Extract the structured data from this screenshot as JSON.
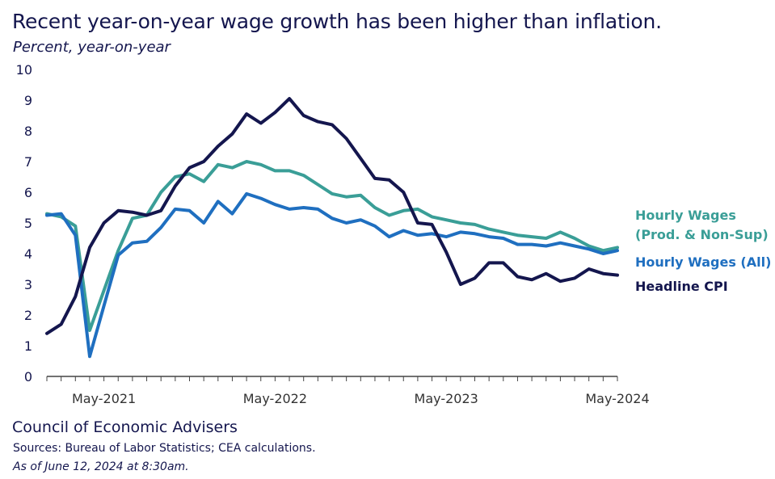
{
  "title": "Recent year-on-year wage growth has been higher than inflation.",
  "subtitle": "Percent, year-on-year",
  "footer": {
    "organization": "Council of Economic Advisers",
    "sources": "Sources: Bureau of Labor Statistics; CEA calculations.",
    "as_of": "As of June 12, 2024 at 8:30am."
  },
  "chart_data": {
    "type": "line",
    "ylabel": "Percent, year-on-year",
    "ylim": [
      0,
      10
    ],
    "yticks": [
      "0",
      "1",
      "2",
      "3",
      "4",
      "5",
      "6",
      "7",
      "8",
      "9",
      "10"
    ],
    "x_range": [
      "Jan-2021",
      "May-2024"
    ],
    "x": [
      "Jan-2021",
      "Feb-2021",
      "Mar-2021",
      "Apr-2021",
      "May-2021",
      "Jun-2021",
      "Jul-2021",
      "Aug-2021",
      "Sep-2021",
      "Oct-2021",
      "Nov-2021",
      "Dec-2021",
      "Jan-2022",
      "Feb-2022",
      "Mar-2022",
      "Apr-2022",
      "May-2022",
      "Jun-2022",
      "Jul-2022",
      "Aug-2022",
      "Sep-2022",
      "Oct-2022",
      "Nov-2022",
      "Dec-2022",
      "Jan-2023",
      "Feb-2023",
      "Mar-2023",
      "Apr-2023",
      "May-2023",
      "Jun-2023",
      "Jul-2023",
      "Aug-2023",
      "Sep-2023",
      "Oct-2023",
      "Nov-2023",
      "Dec-2023",
      "Jan-2024",
      "Feb-2024",
      "Mar-2024",
      "Apr-2024",
      "May-2024"
    ],
    "xtick_labels": [
      {
        "label": "May-2021",
        "x": "May-2021"
      },
      {
        "label": "May-2022",
        "x": "May-2022"
      },
      {
        "label": "May-2023",
        "x": "May-2023"
      },
      {
        "label": "May-2024",
        "x": "May-2024"
      }
    ],
    "grid": false,
    "series": [
      {
        "name": "Hourly Wages (Prod. & Non-Sup)",
        "legend_lines": [
          "Hourly Wages",
          "(Prod. & Non-Sup)"
        ],
        "color": "#3a9e97",
        "values": [
          5.3,
          5.2,
          4.9,
          1.5,
          2.8,
          4.1,
          5.15,
          5.25,
          6.0,
          6.5,
          6.6,
          6.35,
          6.9,
          6.8,
          7.0,
          6.9,
          6.7,
          6.7,
          6.55,
          6.25,
          5.95,
          5.85,
          5.9,
          5.5,
          5.25,
          5.4,
          5.45,
          5.2,
          5.1,
          5.0,
          4.95,
          4.8,
          4.7,
          4.6,
          4.55,
          4.5,
          4.7,
          4.5,
          4.25,
          4.1,
          4.2
        ]
      },
      {
        "name": "Hourly Wages (All)",
        "legend_lines": [
          "Hourly Wages (All)"
        ],
        "color": "#1f6fc0",
        "values": [
          5.25,
          5.3,
          4.6,
          0.65,
          2.3,
          3.95,
          4.35,
          4.4,
          4.85,
          5.45,
          5.4,
          5.0,
          5.7,
          5.3,
          5.95,
          5.8,
          5.6,
          5.45,
          5.5,
          5.45,
          5.15,
          5.0,
          5.1,
          4.9,
          4.55,
          4.75,
          4.6,
          4.65,
          4.55,
          4.7,
          4.65,
          4.55,
          4.5,
          4.3,
          4.3,
          4.25,
          4.35,
          4.25,
          4.15,
          4.0,
          4.1
        ]
      },
      {
        "name": "Headline CPI",
        "legend_lines": [
          "Headline CPI"
        ],
        "color": "#14164e",
        "values": [
          1.4,
          1.7,
          2.6,
          4.2,
          5.0,
          5.4,
          5.35,
          5.25,
          5.4,
          6.2,
          6.8,
          7.0,
          7.5,
          7.9,
          8.55,
          8.25,
          8.6,
          9.05,
          8.5,
          8.3,
          8.2,
          7.75,
          7.1,
          6.45,
          6.4,
          6.0,
          5.0,
          4.95,
          4.05,
          3.0,
          3.2,
          3.7,
          3.7,
          3.25,
          3.15,
          3.35,
          3.1,
          3.2,
          3.5,
          3.35,
          3.3
        ]
      }
    ]
  }
}
